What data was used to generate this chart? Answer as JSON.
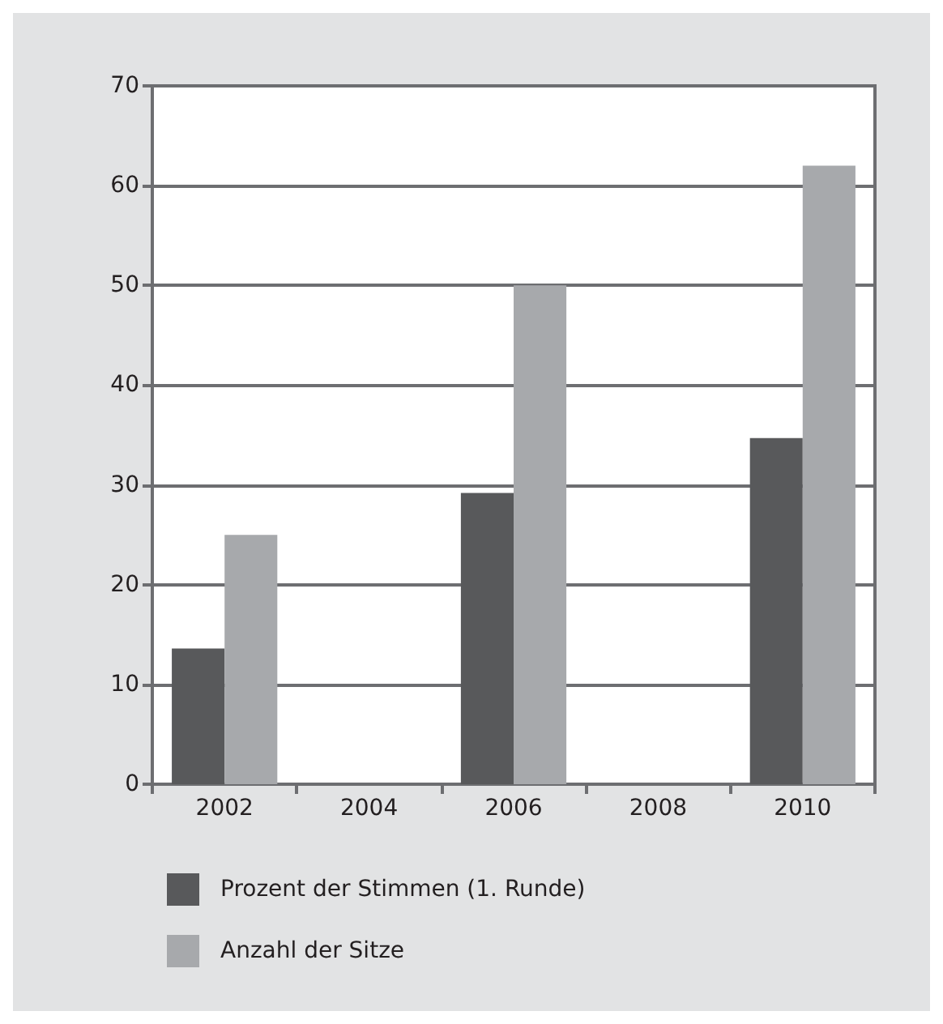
{
  "chart_data": {
    "type": "bar",
    "categories": [
      "2002",
      "2004",
      "2006",
      "2008",
      "2010"
    ],
    "series": [
      {
        "name": "Prozent der Stimmen (1. Runde)",
        "color": "#58595b",
        "values": [
          13.6,
          null,
          29.2,
          null,
          34.7
        ]
      },
      {
        "name": "Anzahl der Sitze",
        "color": "#a7a9ac",
        "values": [
          25,
          null,
          50,
          null,
          62
        ]
      }
    ],
    "ylim": [
      0,
      70
    ],
    "yticks": [
      0,
      10,
      20,
      30,
      40,
      50,
      60,
      70
    ],
    "grid": "y",
    "legend": "bottom"
  }
}
